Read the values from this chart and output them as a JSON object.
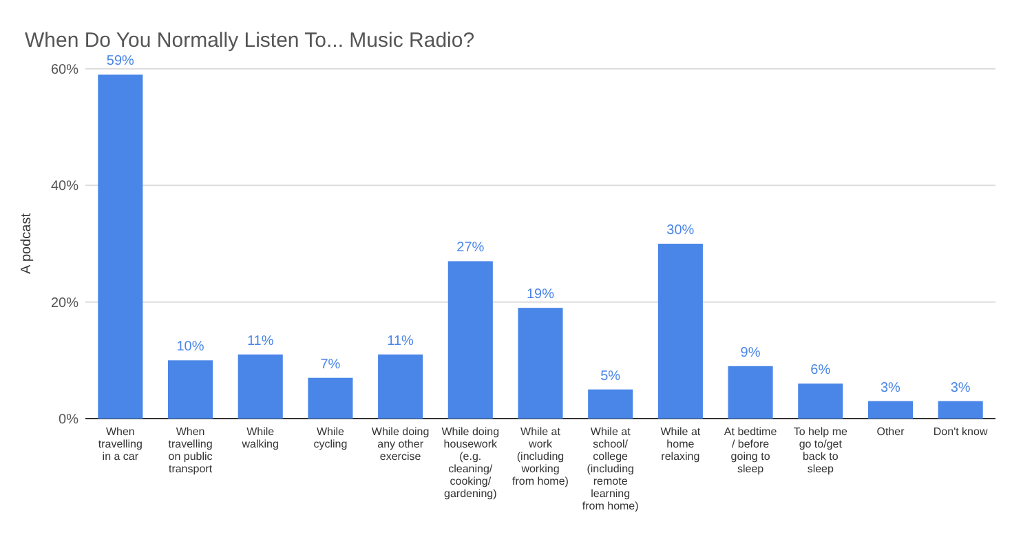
{
  "chart_data": {
    "type": "bar",
    "title": "When Do You Normally Listen To... Music Radio?",
    "ylabel": "A podcast",
    "categories": [
      "When travelling in a car",
      "When travelling on public transport",
      "While walking",
      "While cycling",
      "While doing any other exercise",
      "While doing housework (e.g. cleaning/ cooking/ gardening)",
      "While at work (including working from home)",
      "While at school/ college (including remote learning from home)",
      "While at home relaxing",
      "At bedtime / before going to sleep",
      "To help me go to/get back to sleep",
      "Other",
      "Don't know"
    ],
    "values": [
      59,
      10,
      11,
      7,
      11,
      27,
      19,
      5,
      30,
      9,
      6,
      3,
      3
    ],
    "value_labels": [
      "59%",
      "10%",
      "11%",
      "7%",
      "11%",
      "27%",
      "19%",
      "5%",
      "30%",
      "9%",
      "6%",
      "3%",
      "3%"
    ],
    "color": "#4a86e8",
    "ylim": [
      0,
      60
    ],
    "yticks": [
      {
        "value": 0,
        "label": "0%"
      },
      {
        "value": 20,
        "label": "20%"
      },
      {
        "value": 40,
        "label": "40%"
      },
      {
        "value": 60,
        "label": "60%"
      }
    ],
    "grid": "y"
  }
}
